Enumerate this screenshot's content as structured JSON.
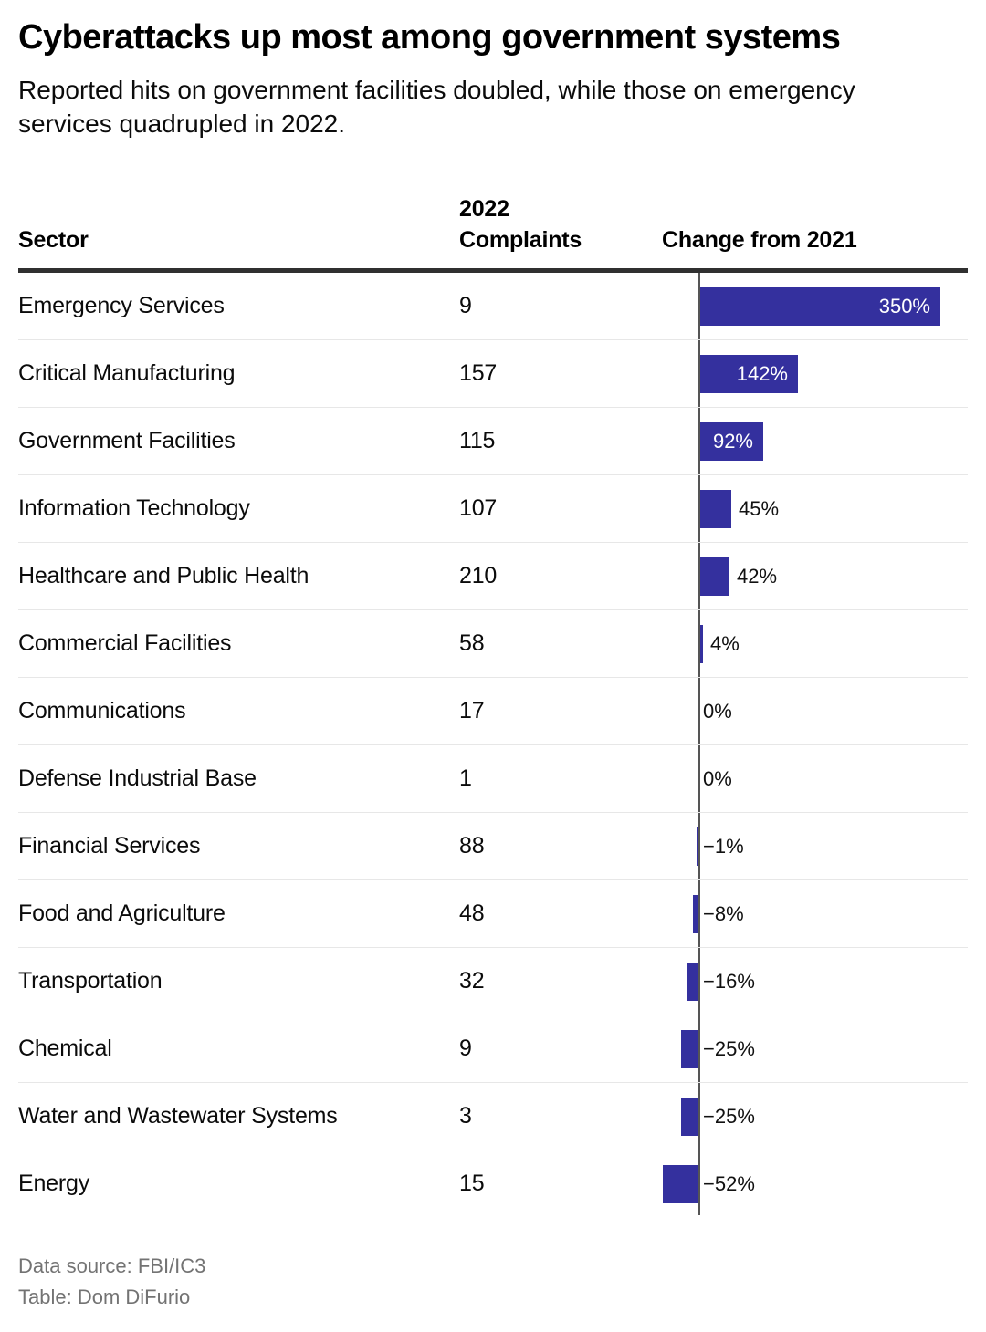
{
  "title": "Cyberattacks up most among government systems",
  "subtitle": "Reported hits on government facilities doubled, while those on emergency services quadrupled in 2022.",
  "columns": {
    "sector": "Sector",
    "complaints": "2022\nComplaints",
    "change": "Change from 2021"
  },
  "rows": [
    {
      "sector": "Emergency Services",
      "complaints": "9",
      "change_pct": 350,
      "change_label": "350%"
    },
    {
      "sector": "Critical Manufacturing",
      "complaints": "157",
      "change_pct": 142,
      "change_label": "142%"
    },
    {
      "sector": "Government Facilities",
      "complaints": "115",
      "change_pct": 92,
      "change_label": "92%"
    },
    {
      "sector": "Information Technology",
      "complaints": "107",
      "change_pct": 45,
      "change_label": "45%"
    },
    {
      "sector": "Healthcare and Public Health",
      "complaints": "210",
      "change_pct": 42,
      "change_label": "42%"
    },
    {
      "sector": "Commercial Facilities",
      "complaints": "58",
      "change_pct": 4,
      "change_label": "4%"
    },
    {
      "sector": "Communications",
      "complaints": "17",
      "change_pct": 0,
      "change_label": "0%"
    },
    {
      "sector": "Defense Industrial Base",
      "complaints": "1",
      "change_pct": 0,
      "change_label": "0%"
    },
    {
      "sector": "Financial Services",
      "complaints": "88",
      "change_pct": -1,
      "change_label": "−1%"
    },
    {
      "sector": "Food and Agriculture",
      "complaints": "48",
      "change_pct": -8,
      "change_label": "−8%"
    },
    {
      "sector": "Transportation",
      "complaints": "32",
      "change_pct": -16,
      "change_label": "−16%"
    },
    {
      "sector": "Chemical",
      "complaints": "9",
      "change_pct": -25,
      "change_label": "−25%"
    },
    {
      "sector": "Water and Wastewater Systems",
      "complaints": "3",
      "change_pct": -25,
      "change_label": "−25%"
    },
    {
      "sector": "Energy",
      "complaints": "15",
      "change_pct": -52,
      "change_label": "−52%"
    }
  ],
  "footer": {
    "source": "Data source: FBI/IC3",
    "credit": "Table: Dom DiFurio"
  },
  "colors": {
    "bar": "#34309E",
    "axis": "#555555",
    "header_rule": "#303030",
    "row_separator": "#E7E7E7",
    "label_inside": "#FFFFFF",
    "label_outside": "#111111",
    "footer_text": "#737373"
  },
  "chart_data": {
    "type": "bar",
    "orientation": "horizontal",
    "title": "Cyberattacks up most among government systems",
    "subtitle": "Reported hits on government facilities doubled, while those on emergency services quadrupled in 2022.",
    "categories": [
      "Emergency Services",
      "Critical Manufacturing",
      "Government Facilities",
      "Information Technology",
      "Healthcare and Public Health",
      "Commercial Facilities",
      "Communications",
      "Defense Industrial Base",
      "Financial Services",
      "Food and Agriculture",
      "Transportation",
      "Chemical",
      "Water and Wastewater Systems",
      "Energy"
    ],
    "series": [
      {
        "name": "2022 Complaints",
        "values": [
          9,
          157,
          115,
          107,
          210,
          58,
          17,
          1,
          88,
          48,
          32,
          9,
          3,
          15
        ]
      },
      {
        "name": "Change from 2021 (%)",
        "values": [
          350,
          142,
          92,
          45,
          42,
          4,
          0,
          0,
          -1,
          -8,
          -16,
          -25,
          -25,
          -52
        ]
      }
    ],
    "value_labels": [
      "350%",
      "142%",
      "92%",
      "45%",
      "42%",
      "4%",
      "0%",
      "0%",
      "−1%",
      "−8%",
      "−16%",
      "−25%",
      "−25%",
      "−52%"
    ],
    "xlim": [
      -52,
      350
    ],
    "zero_baseline": true,
    "grid": false,
    "legend": false,
    "source": "FBI/IC3",
    "credit": "Dom DiFurio"
  }
}
